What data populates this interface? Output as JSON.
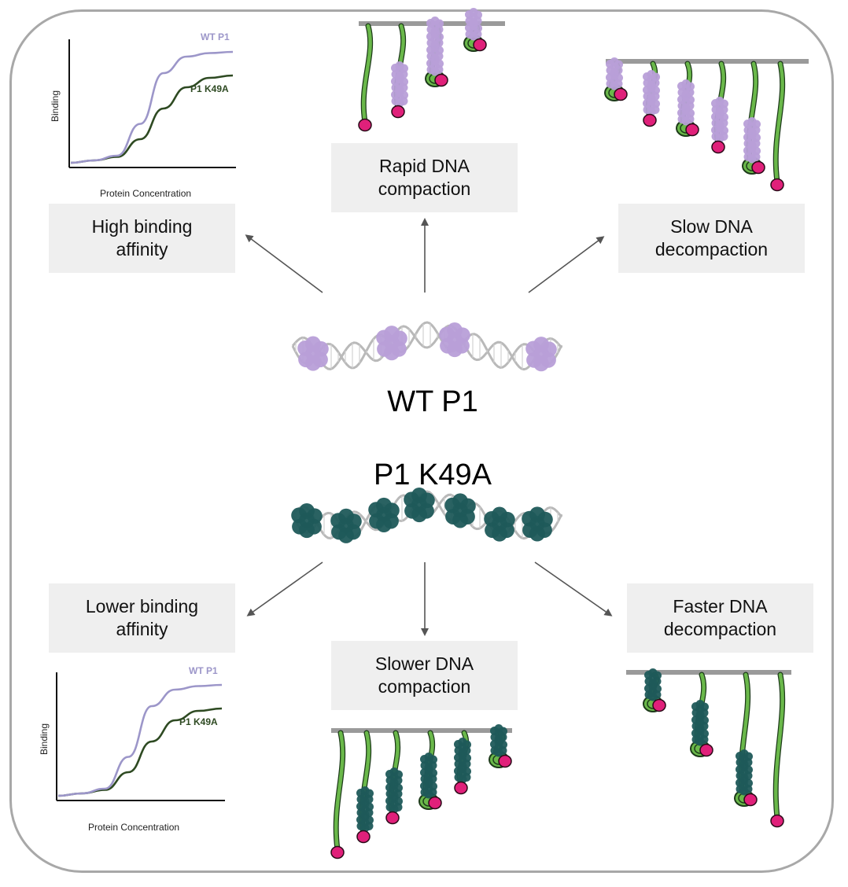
{
  "colors": {
    "wt_purple": "#b89fd8",
    "mutant_teal": "#1f5a5a",
    "dna_green": "#6ab84a",
    "dna_outline": "#1d3b1a",
    "bead_pink": "#e0207a",
    "arrow_gray": "#555555",
    "bar_gray": "#9a9a9a",
    "wt_curve": "#9c96c9",
    "k49a_curve": "#2e4a22"
  },
  "wt": {
    "title": "WT P1",
    "high_binding": {
      "line1": "High binding",
      "line2": "affinity"
    },
    "rapid_compaction": {
      "line1": "Rapid DNA",
      "line2": "compaction"
    },
    "slow_decompaction": {
      "line1": "Slow DNA",
      "line2": "decompaction"
    }
  },
  "mutant": {
    "title": "P1 K49A",
    "lower_binding": {
      "line1": "Lower binding",
      "line2": "affinity"
    },
    "slower_compaction": {
      "line1": "Slower DNA",
      "line2": "compaction"
    },
    "faster_decompaction": {
      "line1": "Faster DNA",
      "line2": "decompaction"
    }
  },
  "chart_data": [
    {
      "type": "line",
      "xlabel": "Protein Concentration",
      "ylabel": "Binding",
      "series": [
        {
          "name": "WT P1",
          "values": [
            0.02,
            0.04,
            0.08,
            0.35,
            0.78,
            0.92,
            0.95,
            0.96
          ]
        },
        {
          "name": "P1 K49A",
          "values": [
            0.02,
            0.04,
            0.07,
            0.22,
            0.48,
            0.66,
            0.74,
            0.76
          ]
        }
      ]
    },
    {
      "type": "line",
      "xlabel": "Protein Concentration",
      "ylabel": "Binding",
      "series": [
        {
          "name": "WT P1",
          "values": [
            0.02,
            0.04,
            0.08,
            0.35,
            0.78,
            0.92,
            0.95,
            0.96
          ]
        },
        {
          "name": "P1 K49A",
          "values": [
            0.02,
            0.04,
            0.07,
            0.22,
            0.48,
            0.66,
            0.74,
            0.76
          ]
        }
      ]
    }
  ]
}
